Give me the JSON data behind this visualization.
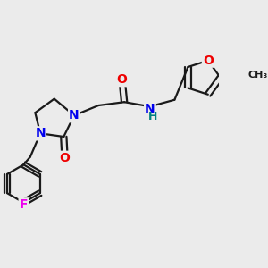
{
  "background_color": "#ebebeb",
  "bond_color": "#1a1a1a",
  "bond_width": 1.6,
  "atom_colors": {
    "N": "#0000ee",
    "O": "#ee0000",
    "F": "#ee00ee",
    "NH_H": "#008080",
    "C": "#1a1a1a"
  },
  "font_size": 8.5
}
